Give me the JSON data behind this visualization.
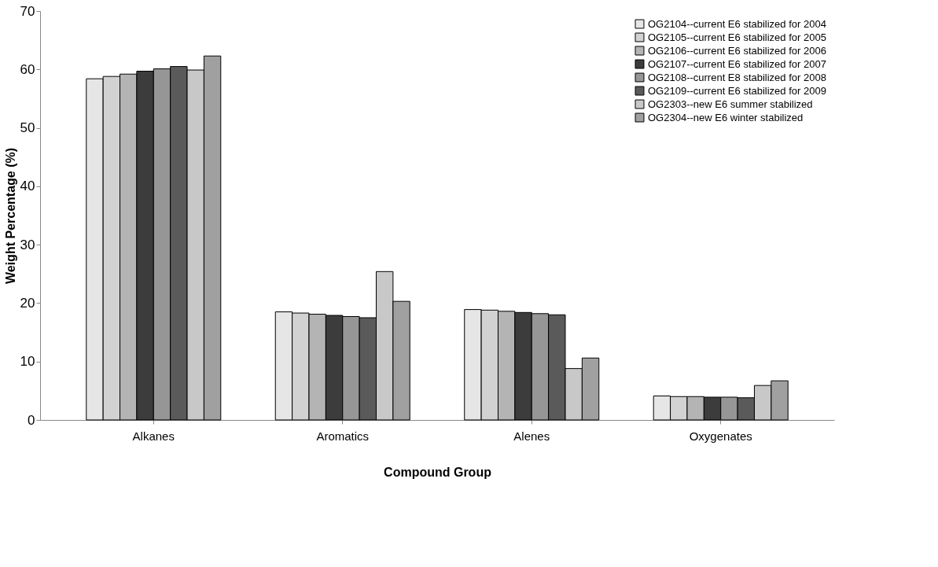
{
  "chart_data": {
    "type": "bar",
    "xlabel": "Compound Group",
    "ylabel": "Weight Percentage (%)",
    "categories": [
      "Alkanes",
      "Aromatics",
      "Alenes",
      "Oxygenates"
    ],
    "ylim": [
      0,
      70
    ],
    "yticks": [
      0,
      10,
      20,
      30,
      40,
      50,
      60,
      70
    ],
    "grid": false,
    "legend": "top right",
    "series": [
      {
        "name": "OG2104--current E6 stabilized for 2004",
        "color": "#e6e6e6",
        "values": [
          58.4,
          18.5,
          18.9,
          4.1
        ]
      },
      {
        "name": "OG2105--current E6 stabilized for 2005",
        "color": "#d2d2d2",
        "values": [
          58.8,
          18.3,
          18.8,
          4.0
        ]
      },
      {
        "name": "OG2106--current E6 stabilized for 2006",
        "color": "#b4b4b4",
        "values": [
          59.2,
          18.1,
          18.6,
          4.0
        ]
      },
      {
        "name": "OG2107--current E6 stabilized for 2007",
        "color": "#3c3c3c",
        "values": [
          59.7,
          17.9,
          18.4,
          3.9
        ]
      },
      {
        "name": "OG2108--current E8 stabilized for 2008",
        "color": "#969696",
        "values": [
          60.1,
          17.7,
          18.2,
          3.9
        ]
      },
      {
        "name": "OG2109--current E6 stabilized for 2009",
        "color": "#5a5a5a",
        "values": [
          60.5,
          17.5,
          18.0,
          3.8
        ]
      },
      {
        "name": "OG2303--new E6 summer stabilized",
        "color": "#c8c8c8",
        "values": [
          59.9,
          25.4,
          8.8,
          5.9
        ]
      },
      {
        "name": "OG2304--new E6 winter stabilized",
        "color": "#a0a0a0",
        "values": [
          62.3,
          20.3,
          10.6,
          6.7
        ]
      }
    ]
  }
}
